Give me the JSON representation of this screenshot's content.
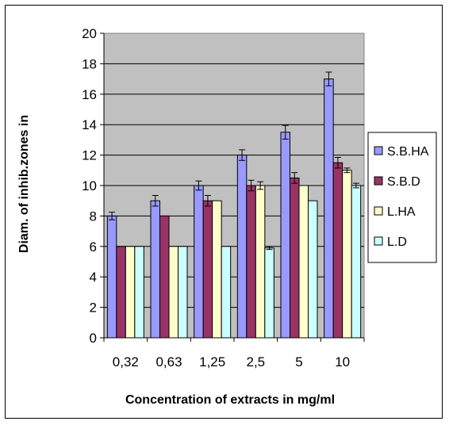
{
  "chart_data": {
    "type": "bar",
    "xlabel": "Concentration of extracts in mg/ml",
    "ylabel": "Diam. of inhib.zones in",
    "ylim": [
      0,
      20
    ],
    "ytick_step": 2,
    "yticks": [
      "0",
      "2",
      "4",
      "6",
      "8",
      "10",
      "12",
      "14",
      "16",
      "18",
      "20"
    ],
    "categories": [
      "0,32",
      "0,63",
      "1,25",
      "2,5",
      "5",
      "10"
    ],
    "grid": true,
    "plot_background": "#c0c0c0",
    "legend_position": "right",
    "series": [
      {
        "name": "S.B.HA",
        "color": "#9999ff",
        "values": [
          8,
          9,
          10,
          12,
          13.5,
          17
        ],
        "errors": [
          0.25,
          0.35,
          0.3,
          0.35,
          0.45,
          0.45
        ]
      },
      {
        "name": "S.B.D",
        "color": "#993366",
        "values": [
          6,
          8,
          9,
          10,
          10.5,
          11.5
        ],
        "errors": [
          0,
          0,
          0.35,
          0.35,
          0.35,
          0.35
        ]
      },
      {
        "name": "L.HA",
        "color": "#ffffcc",
        "values": [
          6,
          6,
          9,
          10,
          10,
          11
        ],
        "errors": [
          0,
          0,
          0,
          0.25,
          0,
          0.15
        ]
      },
      {
        "name": "L.D",
        "color": "#ccffff",
        "values": [
          6,
          6,
          6,
          5.9,
          9,
          10
        ],
        "errors": [
          0,
          0,
          0,
          0.1,
          0,
          0.15
        ]
      }
    ]
  }
}
